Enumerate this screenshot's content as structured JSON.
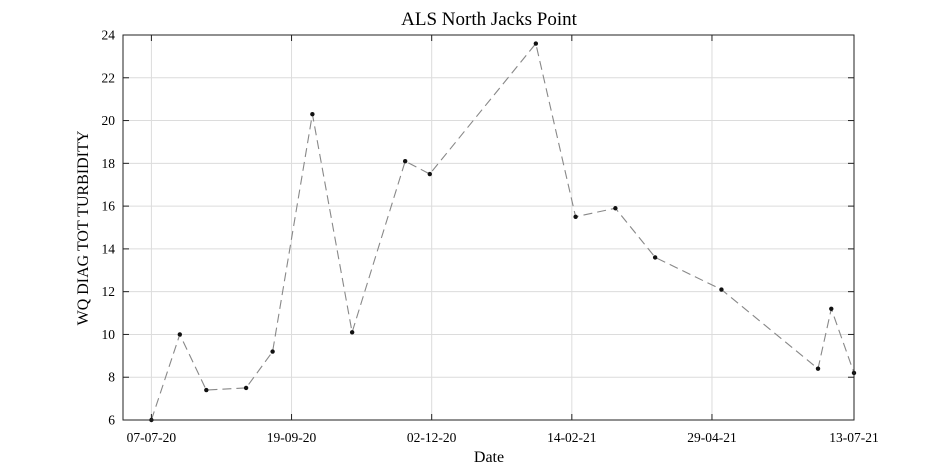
{
  "chart_data": {
    "type": "line",
    "title": "ALS North Jacks Point",
    "xlabel": "Date",
    "ylabel": "WQ DIAG TOT TURBIDITY",
    "x_type": "date",
    "xlim": [
      "2020-06-22",
      "2021-07-13"
    ],
    "ylim": [
      6,
      24
    ],
    "x_ticks": [
      {
        "date": "2020-07-07",
        "label": "07-07-20"
      },
      {
        "date": "2020-09-19",
        "label": "19-09-20"
      },
      {
        "date": "2020-12-02",
        "label": "02-12-20"
      },
      {
        "date": "2021-02-14",
        "label": "14-02-21"
      },
      {
        "date": "2021-04-29",
        "label": "29-04-21"
      },
      {
        "date": "2021-07-13",
        "label": "13-07-21"
      }
    ],
    "y_ticks": [
      6,
      8,
      10,
      12,
      14,
      16,
      18,
      20,
      22,
      24
    ],
    "grid": true,
    "line_style": "dashed",
    "line_color": "#888888",
    "marker_color": "#111111",
    "series": [
      {
        "x": [
          "2020-07-07",
          "2020-07-22",
          "2020-08-05",
          "2020-08-26",
          "2020-09-09",
          "2020-09-30",
          "2020-10-21",
          "2020-11-18",
          "2020-12-01",
          "2021-01-26",
          "2021-02-16",
          "2021-03-09",
          "2021-03-30",
          "2021-05-04",
          "2021-06-24",
          "2021-07-01",
          "2021-07-13"
        ],
        "y": [
          6.0,
          10.0,
          7.4,
          7.5,
          9.2,
          20.3,
          10.1,
          18.1,
          17.5,
          23.6,
          15.5,
          15.9,
          13.6,
          12.1,
          8.4,
          11.2,
          8.2
        ]
      }
    ]
  }
}
